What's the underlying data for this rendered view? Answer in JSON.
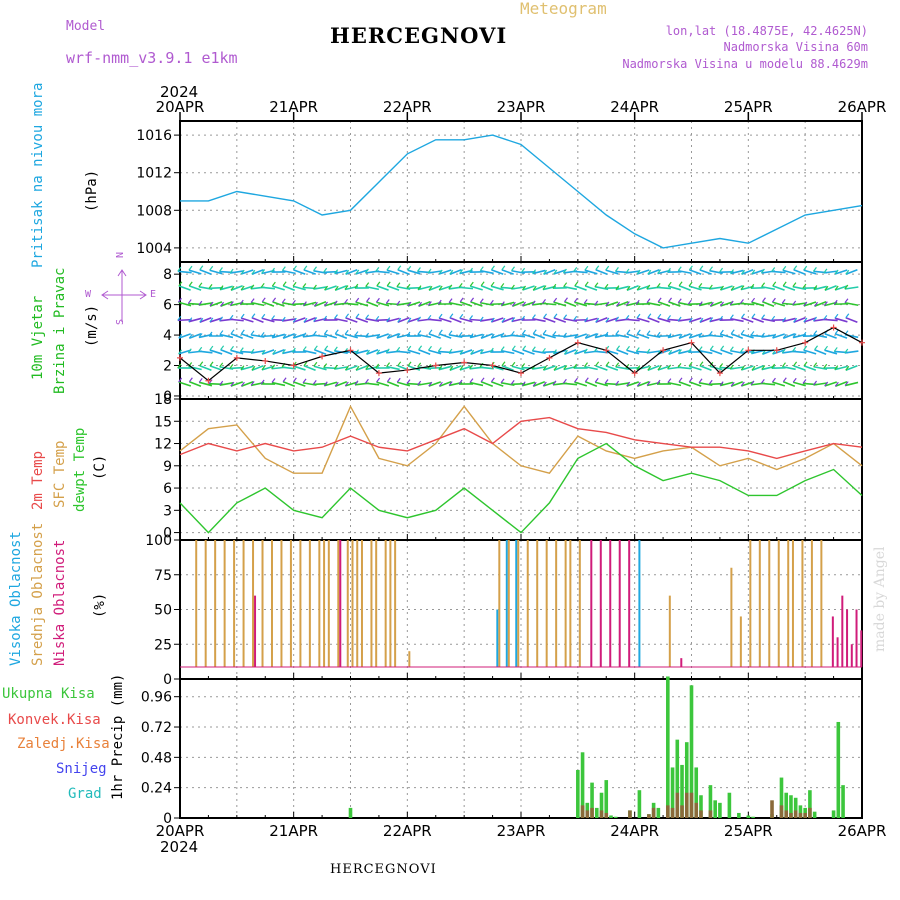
{
  "header": {
    "model_label": "Model",
    "model_name": "wrf-nmm_v3.9.1 e1km",
    "station": "HERCEGNOVI",
    "meteogram_label": "Meteogram",
    "lonlat": "lon,lat (18.4875E, 42.4625N)",
    "altitude": "Nadmorska Visina 60m",
    "model_altitude": "Nadmorska Visina u modelu 88.4629m",
    "footer_station": "HERCEGNOVI",
    "credit": "made by Angel"
  },
  "colors": {
    "pressure": "#1ea7e0",
    "temp2m": "#e84a4a",
    "sfc": "#d4a04a",
    "dew": "#2ec52e",
    "high_cloud": "#1ea7e0",
    "mid_cloud": "#d4a04a",
    "low_cloud": "#d01c7a",
    "total_precip": "#3cc63c",
    "conv_precip": "#e84a4a",
    "frozen_precip": "#e8813a",
    "snow": "#4444ee",
    "hail": "#22bbbb",
    "wind_label": "#22bb22",
    "purple": "#b05ad0"
  },
  "x_axis": {
    "year": "2024",
    "days": [
      "20APR",
      "21APR",
      "22APR",
      "23APR",
      "24APR",
      "25APR",
      "26APR"
    ]
  },
  "panel_labels": {
    "pressure": [
      "Pritisak na nivou mora",
      "(hPa)"
    ],
    "wind": [
      "10m Vjetar",
      "Brzina i Pravac",
      "(m/s)"
    ],
    "compass": [
      "N",
      "W",
      "E",
      "S"
    ],
    "temp": [
      "2m Temp",
      "SFC Temp",
      "dewpt Temp",
      "(C)"
    ],
    "cloud": [
      "Visoka Oblacnost",
      "Srednja Oblacnost",
      "Niska Oblacnost",
      "(%)"
    ],
    "precip_legend": [
      "Ukupna Kisa",
      "Konvek.Kisa",
      "Zaledj.Kisa",
      "Snijeg",
      "Grad"
    ],
    "precip_axis": "1hr Precip (mm)"
  },
  "chart_data": [
    {
      "type": "line",
      "title": "",
      "ylabel": "Pritisak na nivou mora (hPa)",
      "ylim": [
        1002.5,
        1017.5
      ],
      "yticks": [
        1004,
        1008,
        1012,
        1016
      ],
      "x": [
        0,
        6,
        12,
        18,
        24,
        30,
        36,
        42,
        48,
        54,
        60,
        66,
        72,
        78,
        84,
        90,
        96,
        102,
        108,
        114,
        120,
        126,
        132,
        138,
        144
      ],
      "series": [
        {
          "name": "pressure",
          "values": [
            1009,
            1009,
            1010,
            1009.5,
            1009,
            1007.5,
            1008,
            1011,
            1014,
            1015.5,
            1015.5,
            1016,
            1015,
            1012.5,
            1010,
            1007.5,
            1005.5,
            1004,
            1004.5,
            1005,
            1004.5,
            1006,
            1007.5,
            1008,
            1008.5
          ]
        }
      ]
    },
    {
      "type": "line",
      "title": "",
      "ylabel": "10m Vjetar Brzina i Pravac (m/s)",
      "ylim": [
        -0.2,
        8.8
      ],
      "yticks": [
        0,
        2,
        4,
        6,
        8
      ],
      "x": [
        0,
        6,
        12,
        18,
        24,
        30,
        36,
        42,
        48,
        54,
        60,
        66,
        72,
        78,
        84,
        90,
        96,
        102,
        108,
        114,
        120,
        126,
        132,
        138,
        144
      ],
      "series": [
        {
          "name": "wind speed",
          "values": [
            2.5,
            1,
            2.5,
            2.3,
            2,
            2.6,
            3,
            1.5,
            1.7,
            2,
            2.2,
            2,
            1.5,
            2.5,
            3.5,
            3,
            1.5,
            3,
            3.5,
            1.5,
            3,
            3,
            3.5,
            4.5,
            3.5
          ]
        }
      ]
    },
    {
      "type": "line",
      "title": "",
      "ylabel": "Temp (C)",
      "ylim": [
        -1,
        18
      ],
      "yticks": [
        0,
        3,
        6,
        9,
        12,
        15,
        18
      ],
      "x": [
        0,
        6,
        12,
        18,
        24,
        30,
        36,
        42,
        48,
        54,
        60,
        66,
        72,
        78,
        84,
        90,
        96,
        102,
        108,
        114,
        120,
        126,
        132,
        138,
        144
      ],
      "series": [
        {
          "name": "2m Temp",
          "values": [
            10.5,
            12,
            11,
            12,
            11,
            11.5,
            13,
            11.5,
            11,
            12.5,
            14,
            12,
            15,
            15.5,
            14,
            13.5,
            12.5,
            12,
            11.5,
            11.5,
            11,
            10,
            11,
            12,
            11.5
          ]
        },
        {
          "name": "SFC Temp",
          "values": [
            11,
            14,
            14.5,
            10,
            8,
            8,
            17,
            10,
            9,
            12,
            17,
            12,
            9,
            8,
            13,
            11,
            10,
            11,
            11.5,
            9,
            10,
            8.5,
            10,
            12,
            9
          ]
        },
        {
          "name": "dewpt Temp",
          "values": [
            4,
            0,
            4,
            6,
            3,
            2,
            6,
            3,
            2,
            3,
            6,
            3,
            0,
            4,
            10,
            12,
            9,
            7,
            8,
            7,
            5,
            5,
            7,
            8.5,
            5
          ]
        }
      ]
    },
    {
      "type": "bar",
      "title": "",
      "ylabel": "Oblacnost (%)",
      "ylim": [
        0,
        100
      ],
      "yticks": [
        0,
        25,
        50,
        75,
        100
      ],
      "x": [
        3,
        5,
        7,
        9,
        11,
        13,
        15,
        17,
        19,
        21,
        23,
        25,
        27,
        29,
        30,
        31,
        33,
        35,
        36,
        37,
        38,
        40,
        41,
        43,
        44,
        45,
        48,
        51,
        52,
        53,
        54,
        56,
        67,
        69,
        71,
        73,
        75,
        77,
        79,
        81,
        82,
        84,
        86,
        88,
        90,
        92,
        94,
        96,
        97,
        99,
        101,
        103,
        105,
        107,
        108,
        109,
        110,
        111,
        112,
        113,
        114,
        116,
        118,
        120,
        122,
        124,
        126,
        128,
        129,
        131,
        133,
        135,
        137,
        138,
        139,
        140,
        141,
        142,
        143
      ],
      "series": [
        {
          "name": "Visoka Oblacnost",
          "values": [
            0,
            0,
            0,
            0,
            0,
            0,
            0,
            0,
            0,
            0,
            0,
            0,
            0,
            0,
            0,
            0,
            0,
            0,
            0,
            0,
            0,
            0,
            0,
            0,
            0,
            0,
            0,
            0,
            0,
            0,
            0,
            0,
            50,
            100,
            100,
            0,
            0,
            0,
            0,
            0,
            0,
            0,
            0,
            0,
            0,
            0,
            0,
            0,
            100,
            0,
            0,
            0,
            0,
            0,
            0,
            0,
            0,
            0,
            0,
            0,
            0,
            0,
            0,
            0,
            0,
            0,
            0,
            0,
            0,
            0,
            0,
            0,
            0,
            0,
            0,
            0,
            0,
            0,
            0
          ]
        },
        {
          "name": "Srednja Oblacnost",
          "values": [
            100,
            100,
            100,
            100,
            100,
            100,
            100,
            100,
            100,
            100,
            100,
            100,
            100,
            100,
            100,
            100,
            100,
            100,
            100,
            100,
            100,
            100,
            100,
            100,
            100,
            100,
            20,
            0,
            0,
            0,
            0,
            0,
            100,
            100,
            100,
            100,
            100,
            100,
            100,
            100,
            100,
            100,
            0,
            0,
            0,
            0,
            0,
            0,
            0,
            0,
            0,
            60,
            0,
            0,
            0,
            0,
            0,
            0,
            0,
            0,
            0,
            80,
            45,
            100,
            100,
            100,
            100,
            100,
            100,
            100,
            100,
            100,
            0,
            0,
            0,
            0,
            0,
            0,
            0
          ]
        },
        {
          "name": "Niska Oblacnost",
          "values": [
            0,
            0,
            0,
            0,
            0,
            0,
            60,
            0,
            0,
            0,
            0,
            0,
            0,
            0,
            0,
            0,
            100,
            0,
            0,
            0,
            0,
            0,
            0,
            0,
            0,
            0,
            0,
            0,
            0,
            0,
            0,
            0,
            0,
            0,
            0,
            0,
            0,
            0,
            0,
            0,
            0,
            0,
            100,
            100,
            100,
            100,
            100,
            0,
            0,
            0,
            0,
            0,
            15,
            0,
            0,
            0,
            0,
            0,
            0,
            0,
            0,
            0,
            0,
            0,
            0,
            0,
            0,
            0,
            0,
            0,
            0,
            0,
            45,
            30,
            60,
            50,
            25,
            50,
            35
          ]
        }
      ]
    },
    {
      "type": "bar",
      "title": "",
      "ylabel": "1hr Precip (mm)",
      "ylim": [
        0,
        1.1
      ],
      "yticks": [
        0,
        0.24,
        0.48,
        0.72,
        0.96
      ],
      "x": [
        36,
        84,
        85,
        86,
        87,
        88,
        89,
        90,
        91,
        92,
        95,
        97,
        99,
        100,
        101,
        103,
        104,
        105,
        106,
        107,
        108,
        109,
        110,
        112,
        113,
        114,
        116,
        118,
        120,
        121,
        125,
        127,
        128,
        129,
        130,
        131,
        132,
        133,
        134,
        138,
        139,
        140
      ],
      "series": [
        {
          "name": "Ukupna Kisa",
          "values": [
            0.08,
            0.38,
            0.52,
            0.12,
            0.28,
            0.08,
            0.2,
            0.3,
            0.02,
            0.01,
            0.06,
            0.22,
            0.03,
            0.12,
            0.08,
            1.12,
            0.4,
            0.62,
            0.42,
            0.6,
            1.05,
            0.4,
            0.18,
            0.26,
            0.14,
            0.12,
            0.2,
            0.04,
            0.02,
            0.01,
            0.03,
            0.32,
            0.2,
            0.18,
            0.16,
            0.1,
            0.08,
            0.22,
            0.05,
            0.06,
            0.76,
            0.26
          ]
        },
        {
          "name": "Konvek.Kisa",
          "values": [
            0,
            0,
            0.1,
            0.06,
            0.08,
            0,
            0.06,
            0.04,
            0,
            0,
            0.06,
            0,
            0.03,
            0.08,
            0,
            0.1,
            0.08,
            0.2,
            0.1,
            0.2,
            0.2,
            0.12,
            0.06,
            0.06,
            0,
            0,
            0,
            0,
            0,
            0,
            0.14,
            0.1,
            0.06,
            0.04,
            0.06,
            0.04,
            0.04,
            0.08,
            0,
            0,
            0,
            0
          ]
        }
      ]
    }
  ]
}
